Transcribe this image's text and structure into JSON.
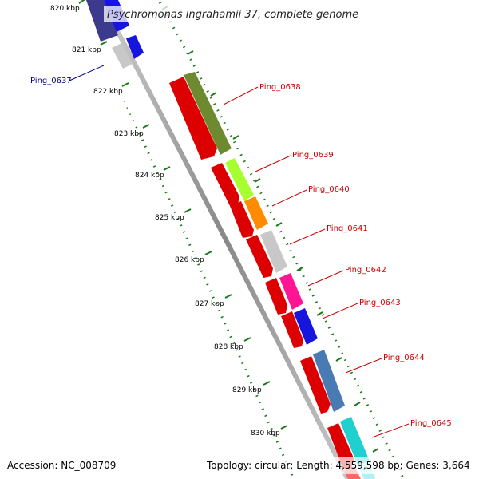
{
  "title": "Psychromonas ingrahamii 37, complete genome",
  "accession": "Accession: NC_008709",
  "topology": "Topology: circular; Length: 4,559,598 bp; Genes: 3,664",
  "ruler": [
    {
      "label": "820 kbp"
    },
    {
      "label": "821 kbp"
    },
    {
      "label": "822 kbp"
    },
    {
      "label": "823 kbp"
    },
    {
      "label": "824 kbp"
    },
    {
      "label": "825 kbp"
    },
    {
      "label": "826 kbp"
    },
    {
      "label": "827 kbp"
    },
    {
      "label": "828 kbp"
    },
    {
      "label": "829 kbp"
    },
    {
      "label": "830 kbp"
    }
  ],
  "genes": [
    {
      "name": "Ping_0637",
      "color": "#00008b"
    },
    {
      "name": "Ping_0638",
      "color": "#cc0000"
    },
    {
      "name": "Ping_0639",
      "color": "#cc0000"
    },
    {
      "name": "Ping_0640",
      "color": "#cc0000"
    },
    {
      "name": "Ping_0641",
      "color": "#cc0000"
    },
    {
      "name": "Ping_0642",
      "color": "#cc0000"
    },
    {
      "name": "Ping_0643",
      "color": "#cc0000"
    },
    {
      "name": "Ping_0644",
      "color": "#cc0000"
    },
    {
      "name": "Ping_0645",
      "color": "#cc0000"
    }
  ]
}
